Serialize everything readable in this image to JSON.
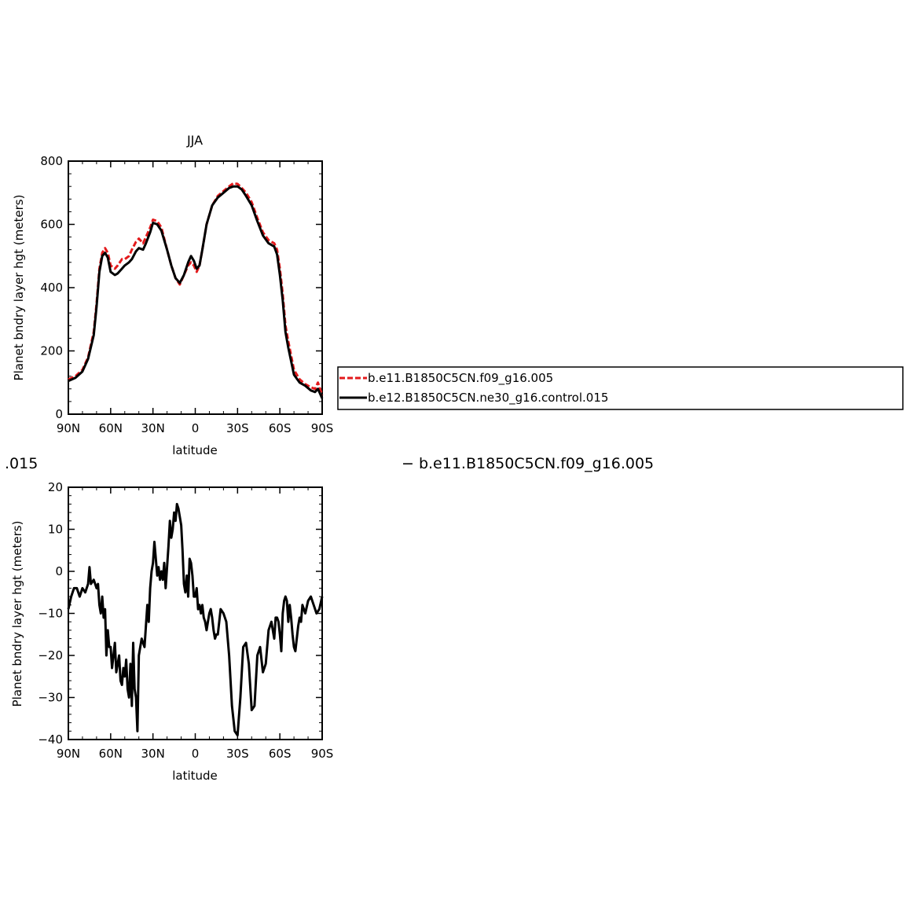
{
  "colors": {
    "background": "#ffffff",
    "axis": "#000000",
    "series_a": "#e31a1c",
    "series_b": "#000000"
  },
  "subtitle_left": ".015",
  "subtitle_right": "− b.e11.B1850C5CN.f09_g16.005",
  "chart_data": [
    {
      "type": "line",
      "title": "JJA",
      "xlabel": "latitude",
      "ylabel": "Planet bndry layer hgt (meters)",
      "x_ticks": [
        {
          "value": 90,
          "label": "90N"
        },
        {
          "value": 60,
          "label": "60N"
        },
        {
          "value": 30,
          "label": "30N"
        },
        {
          "value": 0,
          "label": "0"
        },
        {
          "value": -30,
          "label": "30S"
        },
        {
          "value": -60,
          "label": "60S"
        },
        {
          "value": -90,
          "label": "90S"
        }
      ],
      "xlim": [
        90,
        -90
      ],
      "ylim": [
        0,
        800
      ],
      "y_ticks": [
        0,
        200,
        400,
        600,
        800
      ],
      "grid": false,
      "legend_position": "right",
      "series": [
        {
          "name": "b.e11.B1850C5CN.f09_g16.005",
          "style": "dashed",
          "x": [
            90,
            85,
            80,
            76,
            72,
            70,
            68,
            66,
            64,
            62,
            60,
            57,
            55,
            52,
            50,
            47,
            45,
            42,
            40,
            37,
            35,
            32,
            30,
            27,
            24,
            20,
            17,
            14,
            11,
            8,
            5,
            3,
            1,
            -1,
            -3,
            -5,
            -8,
            -12,
            -16,
            -20,
            -24,
            -27,
            -30,
            -33,
            -36,
            -40,
            -44,
            -48,
            -52,
            -56,
            -58,
            -60,
            -62,
            -64,
            -66,
            -70,
            -74,
            -78,
            -82,
            -85,
            -87,
            -90
          ],
          "y": [
            110,
            120,
            140,
            180,
            260,
            350,
            460,
            510,
            525,
            510,
            470,
            460,
            470,
            490,
            490,
            500,
            520,
            545,
            555,
            540,
            560,
            590,
            615,
            610,
            590,
            520,
            470,
            430,
            410,
            440,
            470,
            480,
            470,
            450,
            470,
            520,
            600,
            660,
            690,
            705,
            720,
            730,
            728,
            715,
            700,
            670,
            620,
            575,
            550,
            540,
            520,
            460,
            380,
            280,
            230,
            140,
            110,
            95,
            85,
            80,
            100,
            60
          ]
        },
        {
          "name": "b.e12.B1850C5CN.ne30_g16.control.015",
          "style": "solid",
          "x": [
            90,
            85,
            80,
            76,
            72,
            70,
            68,
            66,
            64,
            62,
            60,
            57,
            55,
            52,
            50,
            47,
            45,
            42,
            40,
            37,
            35,
            32,
            30,
            27,
            24,
            20,
            17,
            14,
            11,
            8,
            5,
            3,
            1,
            -1,
            -3,
            -5,
            -8,
            -12,
            -16,
            -20,
            -24,
            -27,
            -30,
            -33,
            -36,
            -40,
            -44,
            -48,
            -52,
            -56,
            -58,
            -60,
            -62,
            -64,
            -66,
            -70,
            -74,
            -78,
            -82,
            -85,
            -87,
            -90
          ],
          "y": [
            105,
            115,
            135,
            175,
            250,
            340,
            450,
            500,
            510,
            495,
            450,
            440,
            445,
            460,
            470,
            480,
            490,
            515,
            525,
            520,
            540,
            575,
            605,
            600,
            580,
            520,
            470,
            430,
            415,
            440,
            480,
            500,
            485,
            460,
            470,
            520,
            600,
            660,
            685,
            700,
            715,
            720,
            720,
            710,
            690,
            660,
            610,
            565,
            540,
            530,
            505,
            440,
            360,
            260,
            210,
            125,
            100,
            90,
            75,
            70,
            80,
            50
          ]
        }
      ]
    },
    {
      "type": "line",
      "title": "",
      "xlabel": "latitude",
      "ylabel": "Planet bndry layer hgt (meters)",
      "x_ticks": [
        {
          "value": 90,
          "label": "90N"
        },
        {
          "value": 60,
          "label": "60N"
        },
        {
          "value": 30,
          "label": "30N"
        },
        {
          "value": 0,
          "label": "0"
        },
        {
          "value": -30,
          "label": "30S"
        },
        {
          "value": -60,
          "label": "60S"
        },
        {
          "value": -90,
          "label": "90S"
        }
      ],
      "xlim": [
        90,
        -90
      ],
      "ylim": [
        -40,
        20
      ],
      "y_ticks": [
        -40,
        -30,
        -20,
        -10,
        0,
        10,
        20
      ],
      "y_tick_labels": [
        "−40",
        "−30",
        "−20",
        "−10",
        "0",
        "10",
        "20"
      ],
      "grid": false,
      "series": [
        {
          "style": "solid",
          "x": [
            90,
            88,
            86,
            84,
            82,
            80,
            78,
            76,
            75,
            74,
            72,
            70,
            69,
            68,
            67,
            66,
            65,
            64,
            63,
            62,
            61,
            60,
            59,
            58,
            57,
            56,
            55,
            54,
            53,
            52,
            51,
            50,
            49,
            48,
            47,
            46,
            45,
            44,
            43,
            42,
            41,
            40,
            39,
            38,
            37,
            36,
            35,
            34,
            33,
            32,
            31,
            30,
            29,
            28,
            27,
            26,
            25,
            24,
            23,
            22,
            21,
            20,
            19,
            18,
            17,
            16,
            15,
            14,
            13,
            12,
            11,
            10,
            9,
            8,
            7,
            6,
            5,
            4,
            3,
            2,
            1,
            0,
            -1,
            -2,
            -3,
            -4,
            -5,
            -6,
            -7,
            -8,
            -9,
            -10,
            -11,
            -12,
            -13,
            -14,
            -15,
            -16,
            -17,
            -18,
            -20,
            -22,
            -24,
            -26,
            -28,
            -30,
            -32,
            -34,
            -36,
            -38,
            -40,
            -42,
            -44,
            -46,
            -48,
            -50,
            -52,
            -54,
            -56,
            -57,
            -58,
            -59,
            -60,
            -61,
            -62,
            -63,
            -64,
            -65,
            -66,
            -67,
            -68,
            -69,
            -70,
            -71,
            -72,
            -73,
            -74,
            -75,
            -76,
            -78,
            -80,
            -82,
            -84,
            -86,
            -88,
            -90
          ],
          "y": [
            -9,
            -6,
            -4,
            -4,
            -6,
            -4,
            -5,
            -3,
            1,
            -3,
            -2,
            -4,
            -3,
            -8,
            -10,
            -6,
            -11,
            -9,
            -20,
            -14,
            -18,
            -18,
            -23,
            -20,
            -17,
            -24,
            -22,
            -20,
            -26,
            -27,
            -23,
            -25,
            -21,
            -28,
            -30,
            -22,
            -32,
            -17,
            -28,
            -30,
            -38,
            -20,
            -18,
            -16,
            -17,
            -18,
            -13,
            -8,
            -12,
            -4,
            0,
            2,
            7,
            3,
            -1,
            1,
            -2,
            0,
            -2,
            2,
            -4,
            1,
            6,
            12,
            8,
            10,
            14,
            12,
            16,
            15,
            13,
            11,
            5,
            -3,
            -5,
            -1,
            -6,
            3,
            2,
            -1,
            -6,
            -6,
            -4,
            -9,
            -8,
            -10,
            -8,
            -11,
            -12,
            -14,
            -12,
            -10,
            -9,
            -11,
            -14,
            -16,
            -15,
            -15,
            -12,
            -9,
            -10,
            -12,
            -20,
            -32,
            -38,
            -39,
            -30,
            -18,
            -17,
            -22,
            -33,
            -32,
            -20,
            -18,
            -24,
            -22,
            -14,
            -12,
            -16,
            -11,
            -11,
            -12,
            -15,
            -19,
            -10,
            -7,
            -6,
            -7,
            -12,
            -8,
            -11,
            -15,
            -18,
            -19,
            -16,
            -13,
            -11,
            -12,
            -8,
            -10,
            -7,
            -6,
            -8,
            -10,
            -9,
            -6
          ]
        }
      ]
    }
  ],
  "legend": [
    {
      "label": "b.e11.B1850C5CN.f09_g16.005",
      "style": "dashed",
      "color": "#e31a1c"
    },
    {
      "label": "b.e12.B1850C5CN.ne30_g16.control.015",
      "style": "solid",
      "color": "#000000"
    }
  ]
}
